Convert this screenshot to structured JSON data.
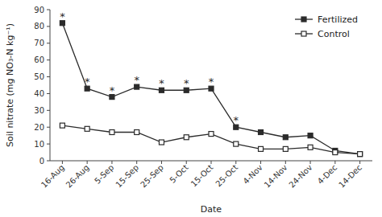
{
  "chart_data": {
    "type": "line",
    "xlabel": "Date",
    "ylabel": "Soil nitrate (mg NO₃-N kg⁻¹)",
    "categories": [
      "16-Aug",
      "26-Aug",
      "5-Sep",
      "15-Sep",
      "25-Sep",
      "5-Oct",
      "15-Oct",
      "25-Oct",
      "4-Nov",
      "14-Nov",
      "24-Nov",
      "4-Dec",
      "14-Dec"
    ],
    "series": [
      {
        "name": "Fertilized",
        "color": "#2b2b2b",
        "marker": "square",
        "values": [
          82,
          43,
          38,
          44,
          42,
          42,
          43,
          20,
          17,
          14,
          15,
          6,
          4
        ]
      },
      {
        "name": "Control",
        "color": "#2b2b2b",
        "marker": "square-open",
        "values": [
          21,
          19,
          17,
          17,
          11,
          14,
          16,
          10,
          7,
          7,
          8,
          5,
          4
        ]
      }
    ],
    "annotations": [
      {
        "text": "*",
        "x": "16-Aug",
        "y": 82
      },
      {
        "text": "*",
        "x": "26-Aug",
        "y": 43
      },
      {
        "text": "*",
        "x": "5-Sep",
        "y": 38
      },
      {
        "text": "*",
        "x": "15-Sep",
        "y": 44
      },
      {
        "text": "*",
        "x": "25-Sep",
        "y": 42
      },
      {
        "text": "*",
        "x": "5-Oct",
        "y": 42
      },
      {
        "text": "*",
        "x": "15-Oct",
        "y": 43
      },
      {
        "text": "*",
        "x": "25-Oct",
        "y": 20
      }
    ],
    "ylim": [
      0,
      90
    ],
    "yticks": [
      0,
      10,
      20,
      30,
      40,
      50,
      60,
      70,
      80,
      90
    ],
    "legend": "upper right",
    "grid": false
  }
}
